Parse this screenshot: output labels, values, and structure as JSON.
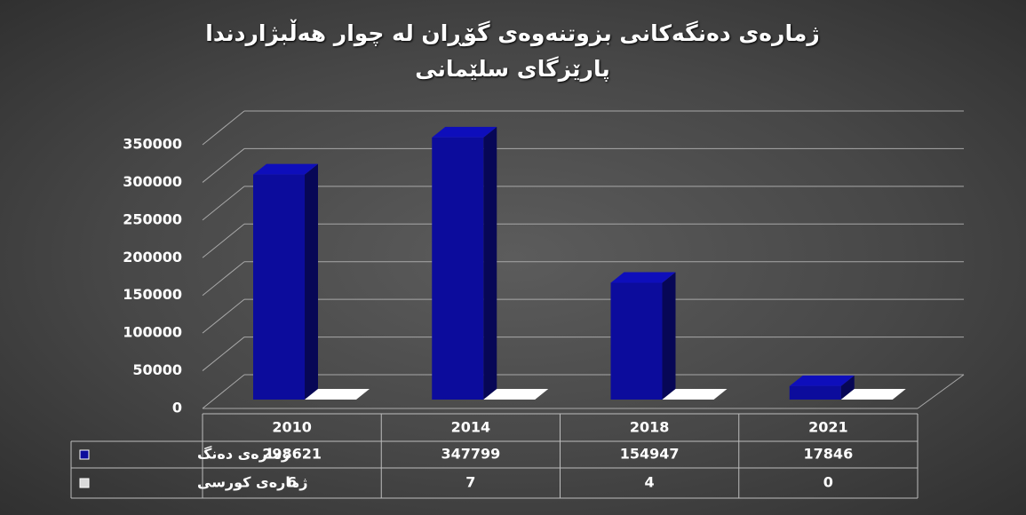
{
  "chart_data": {
    "type": "bar3d",
    "title": "ژمارەی دەنگەکانی بزوتنەوەی گۆڕان لە چوار هەڵبژاردندا پارێزگای سلێمانی",
    "categories": [
      "2010",
      "2014",
      "2018",
      "2021"
    ],
    "series": [
      {
        "name": "ژمارەی دەنگ",
        "color": "#0c0c9c",
        "values": [
          298621,
          347799,
          154947,
          17846
        ]
      },
      {
        "name": "ژمارەی کورسی",
        "color": "#d9d9d9",
        "values": [
          6,
          7,
          4,
          0
        ]
      }
    ],
    "ylim": [
      0,
      350000
    ],
    "yticks": [
      0,
      50000,
      100000,
      150000,
      200000,
      250000,
      300000,
      350000
    ],
    "grid": true
  }
}
